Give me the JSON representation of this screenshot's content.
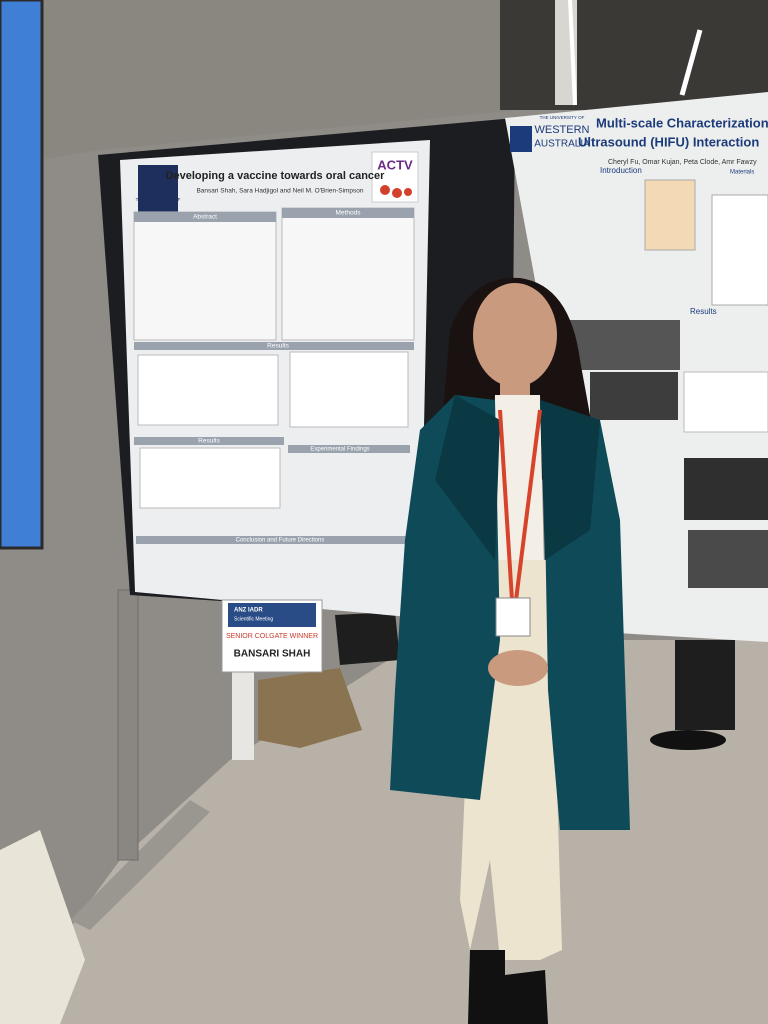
{
  "left_poster": {
    "title": "Developing a vaccine towards oral cancer",
    "authors": "Bansari Shah, Sara Hadjigol and Neil M. O'Brien-Simpson",
    "university_line1": "THE UNIVERSITY OF",
    "university_line2": "MELBOURNE",
    "logo": "ACTV",
    "sections": [
      "Abstract",
      "Methods",
      "Results",
      "Results",
      "Experimental Findings",
      "Conclusion and Future Directions"
    ]
  },
  "award_sign": {
    "banner": "ANZ IADR",
    "banner_sub": "Scientific Meeting",
    "award": "SENIOR COLGATE WINNER",
    "winner": "BANSARI SHAH"
  },
  "right_poster": {
    "university_line1": "THE UNIVERSITY OF",
    "university_line2": "WESTERN",
    "university_line3": "AUSTRALIA",
    "title_line1": "Multi-scale Characterization of",
    "title_line2": "Ultrasound (HIFU) Interaction",
    "authors": "Cheryl Fu, Omar Kujan, Peta Clode, Amr Fawzy",
    "sections": [
      "Introduction",
      "Materials",
      "Results"
    ]
  }
}
